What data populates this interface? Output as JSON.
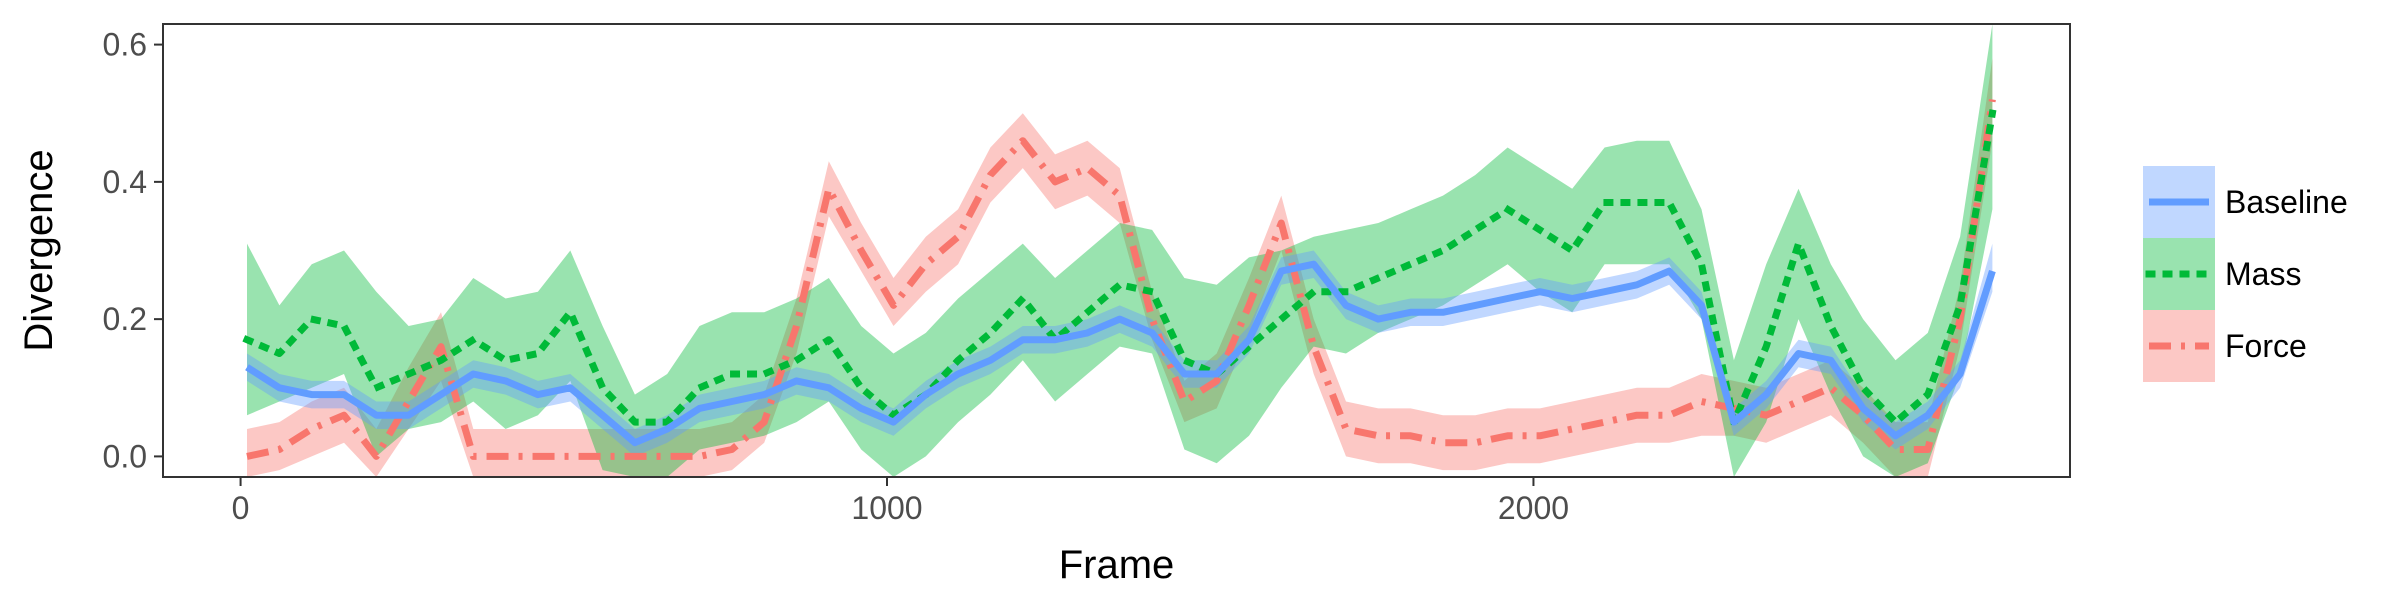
{
  "chart_data": {
    "type": "line",
    "xlabel": "Frame",
    "ylabel": "Divergence",
    "xlim": [
      -120,
      2830
    ],
    "ylim": [
      -0.03,
      0.63
    ],
    "x_ticks": [
      0,
      1000,
      2000
    ],
    "x_tick_labels": [
      "0",
      "1000",
      "2000"
    ],
    "y_ticks": [
      0.0,
      0.2,
      0.4,
      0.6
    ],
    "y_tick_labels": [
      "0.0",
      "0.2",
      "0.4",
      "0.6"
    ],
    "grid": false,
    "legend_position": "right",
    "series": [
      {
        "name": "Force",
        "color": "#f8766d",
        "line_style": "dashdot",
        "x": [
          10,
          60,
          110,
          160,
          210,
          260,
          310,
          360,
          410,
          460,
          510,
          560,
          610,
          660,
          710,
          760,
          810,
          860,
          910,
          960,
          1010,
          1060,
          1110,
          1160,
          1210,
          1260,
          1310,
          1360,
          1410,
          1460,
          1510,
          1560,
          1610,
          1660,
          1710,
          1760,
          1810,
          1860,
          1910,
          1960,
          2010,
          2060,
          2110,
          2160,
          2210,
          2260,
          2310,
          2360,
          2410,
          2460,
          2510,
          2560,
          2610,
          2660,
          2710
        ],
        "y": [
          0.0,
          0.01,
          0.04,
          0.06,
          0.0,
          0.08,
          0.16,
          0.0,
          0.0,
          0.0,
          0.0,
          0.0,
          0.0,
          0.0,
          0.0,
          0.01,
          0.05,
          0.19,
          0.39,
          0.3,
          0.22,
          0.28,
          0.32,
          0.41,
          0.46,
          0.4,
          0.42,
          0.38,
          0.2,
          0.08,
          0.11,
          0.22,
          0.34,
          0.16,
          0.04,
          0.03,
          0.03,
          0.02,
          0.02,
          0.03,
          0.03,
          0.04,
          0.05,
          0.06,
          0.06,
          0.08,
          0.07,
          0.06,
          0.08,
          0.1,
          0.06,
          0.01,
          0.01,
          0.2,
          0.52
        ],
        "lower": [
          -0.03,
          -0.02,
          0.0,
          0.02,
          -0.03,
          0.04,
          0.11,
          -0.03,
          -0.03,
          -0.03,
          -0.03,
          -0.03,
          -0.03,
          -0.03,
          -0.03,
          -0.02,
          0.02,
          0.15,
          0.35,
          0.27,
          0.19,
          0.24,
          0.28,
          0.37,
          0.42,
          0.36,
          0.38,
          0.34,
          0.17,
          0.05,
          0.07,
          0.18,
          0.3,
          0.12,
          0.0,
          -0.01,
          -0.01,
          -0.02,
          -0.02,
          -0.01,
          -0.01,
          0.0,
          0.01,
          0.02,
          0.02,
          0.03,
          0.03,
          0.02,
          0.04,
          0.06,
          0.02,
          -0.03,
          -0.03,
          0.16,
          0.46
        ],
        "upper": [
          0.04,
          0.05,
          0.08,
          0.1,
          0.04,
          0.13,
          0.21,
          0.04,
          0.04,
          0.04,
          0.04,
          0.04,
          0.04,
          0.04,
          0.04,
          0.05,
          0.09,
          0.23,
          0.43,
          0.34,
          0.26,
          0.32,
          0.36,
          0.45,
          0.5,
          0.44,
          0.46,
          0.42,
          0.24,
          0.11,
          0.15,
          0.26,
          0.38,
          0.2,
          0.08,
          0.07,
          0.07,
          0.06,
          0.06,
          0.07,
          0.07,
          0.08,
          0.09,
          0.1,
          0.1,
          0.12,
          0.11,
          0.1,
          0.12,
          0.14,
          0.1,
          0.05,
          0.05,
          0.25,
          0.58
        ]
      },
      {
        "name": "Mass",
        "color": "#00ba38",
        "line_style": "dotted",
        "x": [
          10,
          60,
          110,
          160,
          210,
          260,
          310,
          360,
          410,
          460,
          510,
          560,
          610,
          660,
          710,
          760,
          810,
          860,
          910,
          960,
          1010,
          1060,
          1110,
          1160,
          1210,
          1260,
          1310,
          1360,
          1410,
          1460,
          1510,
          1560,
          1610,
          1660,
          1710,
          1760,
          1810,
          1860,
          1910,
          1960,
          2010,
          2060,
          2110,
          2160,
          2210,
          2260,
          2310,
          2360,
          2410,
          2460,
          2510,
          2560,
          2610,
          2660,
          2710
        ],
        "y": [
          0.17,
          0.15,
          0.2,
          0.19,
          0.1,
          0.12,
          0.14,
          0.17,
          0.14,
          0.15,
          0.21,
          0.1,
          0.05,
          0.05,
          0.1,
          0.12,
          0.12,
          0.14,
          0.17,
          0.1,
          0.06,
          0.09,
          0.14,
          0.18,
          0.23,
          0.17,
          0.21,
          0.25,
          0.24,
          0.14,
          0.12,
          0.16,
          0.2,
          0.24,
          0.24,
          0.26,
          0.28,
          0.3,
          0.33,
          0.36,
          0.33,
          0.3,
          0.37,
          0.37,
          0.37,
          0.28,
          0.05,
          0.16,
          0.31,
          0.19,
          0.1,
          0.05,
          0.09,
          0.22,
          0.5
        ],
        "lower": [
          0.06,
          0.08,
          0.1,
          0.12,
          0.0,
          0.04,
          0.05,
          0.08,
          0.04,
          0.06,
          0.11,
          -0.02,
          -0.03,
          -0.03,
          0.01,
          0.02,
          0.03,
          0.05,
          0.08,
          0.01,
          -0.03,
          0.0,
          0.05,
          0.09,
          0.14,
          0.08,
          0.12,
          0.16,
          0.15,
          0.01,
          -0.01,
          0.03,
          0.1,
          0.16,
          0.15,
          0.18,
          0.2,
          0.22,
          0.25,
          0.28,
          0.24,
          0.21,
          0.28,
          0.28,
          0.28,
          0.2,
          -0.03,
          0.05,
          0.2,
          0.09,
          0.0,
          -0.03,
          -0.01,
          0.12,
          0.36
        ],
        "upper": [
          0.31,
          0.22,
          0.28,
          0.3,
          0.24,
          0.19,
          0.2,
          0.26,
          0.23,
          0.24,
          0.3,
          0.19,
          0.09,
          0.12,
          0.19,
          0.21,
          0.21,
          0.23,
          0.26,
          0.19,
          0.15,
          0.18,
          0.23,
          0.27,
          0.31,
          0.26,
          0.3,
          0.34,
          0.33,
          0.26,
          0.25,
          0.29,
          0.3,
          0.32,
          0.33,
          0.34,
          0.36,
          0.38,
          0.41,
          0.45,
          0.42,
          0.39,
          0.45,
          0.46,
          0.46,
          0.36,
          0.14,
          0.28,
          0.39,
          0.28,
          0.2,
          0.14,
          0.18,
          0.32,
          0.63
        ]
      },
      {
        "name": "Baseline",
        "color": "#619cff",
        "line_style": "solid",
        "x": [
          10,
          60,
          110,
          160,
          210,
          260,
          310,
          360,
          410,
          460,
          510,
          560,
          610,
          660,
          710,
          760,
          810,
          860,
          910,
          960,
          1010,
          1060,
          1110,
          1160,
          1210,
          1260,
          1310,
          1360,
          1410,
          1460,
          1510,
          1560,
          1610,
          1660,
          1710,
          1760,
          1810,
          1860,
          1910,
          1960,
          2010,
          2060,
          2110,
          2160,
          2210,
          2260,
          2310,
          2360,
          2410,
          2460,
          2510,
          2560,
          2610,
          2660,
          2710
        ],
        "y": [
          0.13,
          0.1,
          0.09,
          0.09,
          0.06,
          0.06,
          0.09,
          0.12,
          0.11,
          0.09,
          0.1,
          0.06,
          0.02,
          0.04,
          0.07,
          0.08,
          0.09,
          0.11,
          0.1,
          0.07,
          0.05,
          0.09,
          0.12,
          0.14,
          0.17,
          0.17,
          0.18,
          0.2,
          0.18,
          0.12,
          0.12,
          0.17,
          0.27,
          0.28,
          0.22,
          0.2,
          0.21,
          0.21,
          0.22,
          0.23,
          0.24,
          0.23,
          0.24,
          0.25,
          0.27,
          0.22,
          0.05,
          0.09,
          0.15,
          0.14,
          0.07,
          0.03,
          0.06,
          0.12,
          0.27
        ],
        "lower": [
          0.11,
          0.08,
          0.07,
          0.07,
          0.04,
          0.04,
          0.07,
          0.1,
          0.09,
          0.07,
          0.08,
          0.04,
          0.0,
          0.02,
          0.05,
          0.06,
          0.07,
          0.09,
          0.08,
          0.05,
          0.03,
          0.07,
          0.1,
          0.12,
          0.15,
          0.15,
          0.16,
          0.18,
          0.16,
          0.1,
          0.1,
          0.15,
          0.25,
          0.26,
          0.2,
          0.18,
          0.19,
          0.19,
          0.2,
          0.21,
          0.22,
          0.21,
          0.22,
          0.23,
          0.25,
          0.2,
          0.03,
          0.07,
          0.13,
          0.12,
          0.05,
          0.01,
          0.04,
          0.1,
          0.24
        ],
        "upper": [
          0.15,
          0.12,
          0.11,
          0.11,
          0.08,
          0.08,
          0.11,
          0.14,
          0.13,
          0.11,
          0.12,
          0.08,
          0.04,
          0.06,
          0.09,
          0.1,
          0.11,
          0.13,
          0.12,
          0.09,
          0.07,
          0.11,
          0.14,
          0.16,
          0.19,
          0.19,
          0.2,
          0.22,
          0.2,
          0.14,
          0.14,
          0.19,
          0.29,
          0.3,
          0.24,
          0.22,
          0.23,
          0.23,
          0.24,
          0.25,
          0.26,
          0.25,
          0.26,
          0.27,
          0.29,
          0.24,
          0.07,
          0.11,
          0.17,
          0.16,
          0.09,
          0.05,
          0.08,
          0.14,
          0.31
        ]
      }
    ],
    "legend": [
      {
        "label": "Baseline",
        "color": "#619cff",
        "line_style": "solid"
      },
      {
        "label": "Mass",
        "color": "#00ba38",
        "line_style": "dotted"
      },
      {
        "label": "Force",
        "color": "#f8766d",
        "line_style": "dashdot"
      }
    ]
  }
}
